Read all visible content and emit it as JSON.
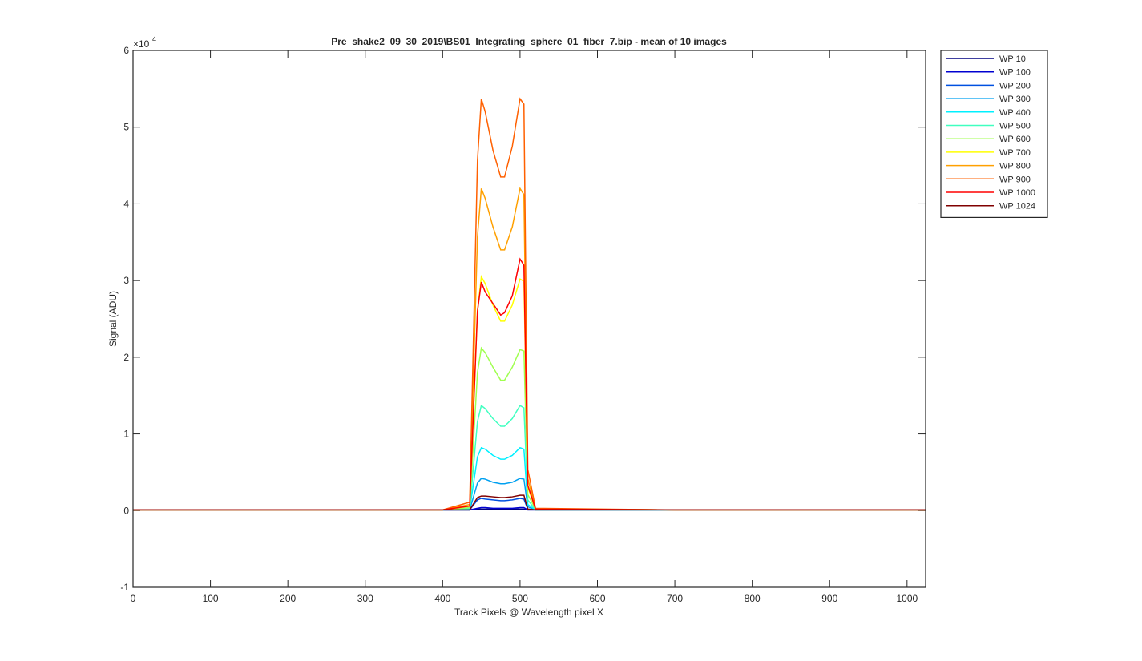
{
  "chart_data": {
    "type": "line",
    "title": "Pre_shake2_09_30_2019\\BS01_Integrating_sphere_01_fiber_7.bip - mean of 10 images",
    "x_label": "Track Pixels @ Wavelength pixel X",
    "y_label": "Signal (ADU)",
    "y_exponent": {
      "base": "×10",
      "power": "4"
    },
    "x": [
      0,
      200,
      400,
      435,
      445,
      450,
      455,
      465,
      475,
      480,
      490,
      500,
      505,
      510,
      520,
      700,
      1024
    ],
    "xlim": [
      0,
      1024
    ],
    "xticks": [
      0,
      100,
      200,
      300,
      400,
      500,
      600,
      700,
      800,
      900,
      1000
    ],
    "ylim": [
      -1,
      6
    ],
    "yticks": [
      -1,
      0,
      1,
      2,
      3,
      4,
      5,
      6
    ],
    "grid": false,
    "legend": "outside-top-right",
    "series": [
      {
        "name": "WP 10",
        "color": "#000080",
        "values": [
          0.01,
          0.01,
          0.01,
          0.01,
          0.02,
          0.02,
          0.02,
          0.02,
          0.02,
          0.02,
          0.02,
          0.02,
          0.02,
          0.01,
          0.01,
          0.01,
          0.01
        ]
      },
      {
        "name": "WP 100",
        "color": "#0000d0",
        "values": [
          0.01,
          0.01,
          0.01,
          0.01,
          0.03,
          0.04,
          0.04,
          0.03,
          0.03,
          0.03,
          0.03,
          0.04,
          0.04,
          0.01,
          0.01,
          0.01,
          0.01
        ]
      },
      {
        "name": "WP 200",
        "color": "#0050e0",
        "values": [
          0.01,
          0.01,
          0.01,
          0.01,
          0.14,
          0.16,
          0.15,
          0.14,
          0.13,
          0.13,
          0.14,
          0.16,
          0.15,
          0.02,
          0.01,
          0.01,
          0.01
        ]
      },
      {
        "name": "WP 300",
        "color": "#00a0f0",
        "values": [
          0.01,
          0.01,
          0.01,
          0.01,
          0.36,
          0.42,
          0.41,
          0.37,
          0.35,
          0.35,
          0.37,
          0.42,
          0.41,
          0.05,
          0.01,
          0.01,
          0.01
        ]
      },
      {
        "name": "WP 400",
        "color": "#00f0ff",
        "values": [
          0.01,
          0.01,
          0.01,
          0.02,
          0.7,
          0.82,
          0.8,
          0.72,
          0.67,
          0.67,
          0.72,
          0.82,
          0.8,
          0.08,
          0.01,
          0.01,
          0.01
        ]
      },
      {
        "name": "WP 500",
        "color": "#40ffc0",
        "values": [
          0.01,
          0.01,
          0.01,
          0.03,
          1.16,
          1.37,
          1.33,
          1.2,
          1.1,
          1.1,
          1.2,
          1.37,
          1.34,
          0.14,
          0.01,
          0.01,
          0.01
        ]
      },
      {
        "name": "WP 600",
        "color": "#a0ff50",
        "values": [
          0.01,
          0.01,
          0.01,
          0.04,
          1.8,
          2.12,
          2.06,
          1.87,
          1.7,
          1.7,
          1.87,
          2.1,
          2.08,
          0.21,
          0.02,
          0.01,
          0.01
        ]
      },
      {
        "name": "WP 700",
        "color": "#ffff00",
        "values": [
          0.01,
          0.01,
          0.01,
          0.06,
          2.6,
          3.05,
          2.96,
          2.68,
          2.47,
          2.47,
          2.68,
          3.02,
          2.99,
          0.31,
          0.02,
          0.01,
          0.01
        ]
      },
      {
        "name": "WP 800",
        "color": "#ffa000",
        "values": [
          0.01,
          0.01,
          0.01,
          0.08,
          3.57,
          4.2,
          4.07,
          3.7,
          3.4,
          3.4,
          3.7,
          4.2,
          4.12,
          0.42,
          0.02,
          0.01,
          0.01
        ]
      },
      {
        "name": "WP 900",
        "color": "#ff6000",
        "values": [
          0.01,
          0.01,
          0.01,
          0.11,
          4.56,
          5.37,
          5.2,
          4.7,
          4.35,
          4.35,
          4.75,
          5.37,
          5.3,
          0.54,
          0.03,
          0.01,
          0.01
        ]
      },
      {
        "name": "WP 1000",
        "color": "#ff0000",
        "values": [
          0.01,
          0.01,
          0.01,
          0.06,
          2.6,
          2.98,
          2.85,
          2.7,
          2.55,
          2.58,
          2.8,
          3.28,
          3.2,
          0.33,
          0.02,
          0.01,
          0.01
        ]
      },
      {
        "name": "WP 1024",
        "color": "#800000",
        "values": [
          0.01,
          0.01,
          0.01,
          0.01,
          0.17,
          0.19,
          0.19,
          0.18,
          0.17,
          0.17,
          0.18,
          0.2,
          0.2,
          0.02,
          0.01,
          0.01,
          0.01
        ]
      }
    ]
  }
}
